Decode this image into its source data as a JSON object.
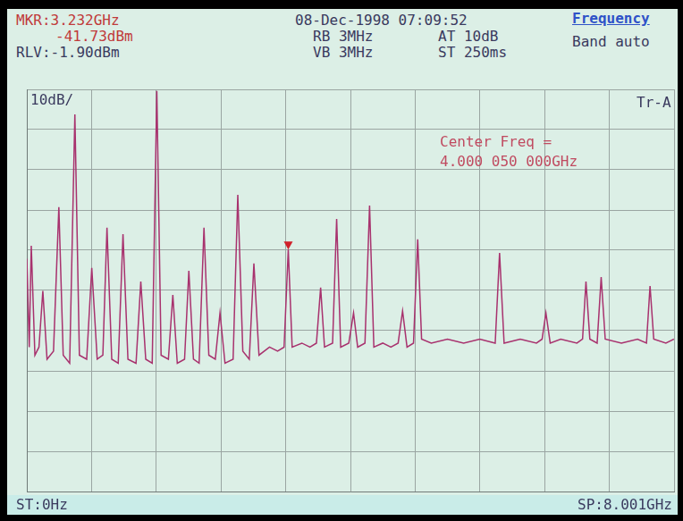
{
  "chart_data": {
    "type": "line",
    "annotations": [
      "MKR:3.232GHz",
      "-41.73dBm",
      "RLV:-1.90dBm",
      "08-Dec-1998 07:09:52",
      "RB 3MHz",
      "VB 3MHz",
      "AT 10dB",
      "ST 250ms",
      "Frequency",
      "Band auto",
      "10dB/",
      "Tr-A",
      "Center Freq =",
      "4.000 050 000GHz",
      "ST:0Hz",
      "SP:8.001GHz"
    ],
    "x": [
      0,
      0.03,
      0.055,
      0.1,
      0.15,
      0.198,
      0.25,
      0.33,
      0.396,
      0.45,
      0.53,
      0.594,
      0.65,
      0.74,
      0.803,
      0.87,
      0.94,
      0.991,
      1.05,
      1.13,
      1.189,
      1.25,
      1.35,
      1.409,
      1.47,
      1.55,
      1.607,
      1.66,
      1.75,
      1.805,
      1.86,
      1.95,
      2.003,
      2.06,
      2.13,
      2.19,
      2.25,
      2.33,
      2.388,
      2.45,
      2.55,
      2.608,
      2.67,
      2.75,
      2.807,
      2.87,
      3.0,
      3.1,
      3.18,
      3.232,
      3.28,
      3.4,
      3.5,
      3.58,
      3.632,
      3.68,
      3.78,
      3.83,
      3.88,
      3.98,
      4.039,
      4.09,
      4.18,
      4.237,
      4.29,
      4.4,
      4.5,
      4.59,
      4.645,
      4.7,
      4.78,
      4.832,
      4.88,
      5.0,
      5.2,
      5.4,
      5.6,
      5.79,
      5.844,
      5.9,
      6.1,
      6.3,
      6.37,
      6.417,
      6.47,
      6.6,
      6.8,
      6.87,
      6.912,
      6.96,
      7.05,
      7.1,
      7.15,
      7.35,
      7.55,
      7.66,
      7.704,
      7.75,
      7.9,
      8.0
    ],
    "values": [
      -44,
      -66,
      -40.8,
      -68,
      -66,
      -52,
      -69,
      -67,
      -31.2,
      -68,
      -70,
      -8.1,
      -68,
      -69,
      -46.3,
      -69,
      -68,
      -36.3,
      -69,
      -70,
      -37.9,
      -69,
      -70,
      -49.7,
      -69,
      -70,
      -2.3,
      -68,
      -69,
      -53,
      -70,
      -69,
      -47,
      -69,
      -70,
      -36.3,
      -68,
      -69,
      -57.5,
      -70,
      -69,
      -28.1,
      -67,
      -69,
      -45.2,
      -68,
      -66,
      -67,
      -66,
      -41.73,
      -66,
      -65,
      -66,
      -65,
      -51.2,
      -66,
      -65,
      -34.1,
      -66,
      -65,
      -57.5,
      -66,
      -65,
      -30.8,
      -66,
      -65,
      -66,
      -65,
      -57,
      -66,
      -65,
      -39.2,
      -64,
      -65,
      -64,
      -65,
      -64,
      -65,
      -42.6,
      -65,
      -64,
      -65,
      -64,
      -57.5,
      -65,
      -64,
      -65,
      -64,
      -49.7,
      -64,
      -65,
      -48.6,
      -64,
      -65,
      -64,
      -65,
      -50.8,
      -64,
      -65,
      -64
    ],
    "color": "#a8326e",
    "marker_position": {
      "x": 3.232,
      "y": -41.73
    },
    "xlim": [
      0,
      8.001
    ],
    "xticks": [
      0,
      0.8001,
      1.6002,
      2.4003,
      3.2004,
      4.0005,
      4.8006,
      5.6007,
      6.4008,
      7.2009,
      8.001
    ],
    "ylim": [
      -101.9,
      -1.9
    ],
    "yticks": [
      -101.9,
      -91.9,
      -81.9,
      -71.9,
      -61.9,
      -51.9,
      -41.9,
      -31.9,
      -21.9,
      -11.9,
      -1.9
    ],
    "grid": true,
    "tick_labels": false
  }
}
